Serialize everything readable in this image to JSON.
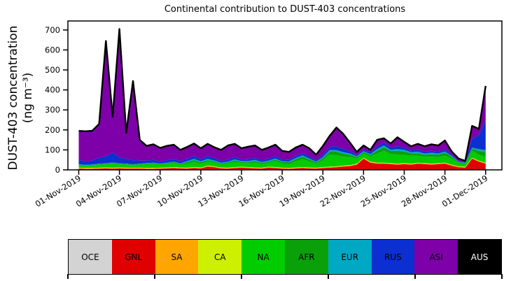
{
  "title": "Continental contribution to DUST-403 concentrations",
  "chart_data": {
    "type": "area",
    "stacked": true,
    "title": "Continental contribution to DUST-403 concentrations",
    "ylabel_line1": "DUST-403 concentration",
    "ylabel_line2": "(ng m⁻³)",
    "ylim": [
      0,
      745
    ],
    "yticks": [
      0,
      100,
      200,
      300,
      400,
      500,
      600,
      700
    ],
    "xlim_days": [
      -0.8,
      31.2
    ],
    "x_step_days": 0.5,
    "x_start": "01-Nov-2019",
    "x_end": "01-Dec-2019",
    "xticks": [
      {
        "day": 0,
        "label": "01-Nov-2019"
      },
      {
        "day": 3,
        "label": "04-Nov-2019"
      },
      {
        "day": 6,
        "label": "07-Nov-2019"
      },
      {
        "day": 9,
        "label": "10-Nov-2019"
      },
      {
        "day": 12,
        "label": "13-Nov-2019"
      },
      {
        "day": 15,
        "label": "16-Nov-2019"
      },
      {
        "day": 18,
        "label": "19-Nov-2019"
      },
      {
        "day": 21,
        "label": "22-Nov-2019"
      },
      {
        "day": 24,
        "label": "25-Nov-2019"
      },
      {
        "day": 27,
        "label": "28-Nov-2019"
      },
      {
        "day": 30,
        "label": "01-Dec-2019"
      }
    ],
    "grid": false,
    "legend_position": "bottom-strip",
    "outline_color": "#000000",
    "axis_color": "#000000",
    "background": "#ffffff",
    "series": [
      {
        "name": "OCE",
        "color": "#d3d3d3",
        "values": [
          1,
          1,
          1,
          1,
          1,
          1,
          1,
          1,
          1,
          1,
          1,
          1,
          1,
          1,
          1,
          1,
          1,
          1,
          1,
          1,
          1,
          1,
          1,
          1,
          1,
          1,
          1,
          1,
          1,
          1,
          1,
          1,
          1,
          1,
          1,
          1,
          1,
          1,
          1,
          1,
          1,
          1,
          1,
          1,
          1,
          1,
          1,
          1,
          1,
          1,
          1,
          1,
          1,
          1,
          1,
          1,
          1,
          1,
          1,
          1,
          1
        ]
      },
      {
        "name": "GNL",
        "color": "#e00000",
        "values": [
          5,
          4,
          4,
          5,
          6,
          5,
          6,
          5,
          5,
          5,
          4,
          4,
          5,
          6,
          8,
          6,
          5,
          8,
          6,
          15,
          12,
          6,
          5,
          8,
          10,
          8,
          6,
          5,
          10,
          8,
          5,
          4,
          6,
          8,
          6,
          5,
          8,
          10,
          12,
          15,
          18,
          25,
          55,
          35,
          30,
          30,
          28,
          25,
          28,
          25,
          30,
          28,
          25,
          28,
          30,
          20,
          12,
          10,
          55,
          40,
          30
        ]
      },
      {
        "name": "SA",
        "color": "#ffa500",
        "values": [
          3,
          3,
          3,
          3,
          3,
          3,
          3,
          3,
          3,
          3,
          3,
          3,
          3,
          3,
          3,
          3,
          3,
          3,
          3,
          3,
          3,
          3,
          3,
          3,
          3,
          3,
          3,
          3,
          3,
          3,
          3,
          3,
          3,
          3,
          3,
          3,
          3,
          3,
          3,
          3,
          3,
          3,
          3,
          3,
          3,
          3,
          3,
          3,
          3,
          3,
          3,
          3,
          3,
          3,
          3,
          3,
          3,
          3,
          3,
          3,
          3
        ]
      },
      {
        "name": "CA",
        "color": "#cdf000",
        "values": [
          2,
          2,
          2,
          2,
          2,
          2,
          2,
          2,
          2,
          2,
          2,
          2,
          2,
          2,
          2,
          2,
          2,
          2,
          2,
          2,
          2,
          2,
          2,
          2,
          2,
          2,
          2,
          2,
          2,
          2,
          2,
          2,
          2,
          2,
          2,
          2,
          2,
          2,
          2,
          2,
          2,
          2,
          2,
          2,
          2,
          2,
          2,
          2,
          2,
          2,
          2,
          2,
          2,
          2,
          2,
          2,
          2,
          2,
          2,
          2,
          2
        ]
      },
      {
        "name": "NA",
        "color": "#00cc00",
        "values": [
          12,
          10,
          12,
          15,
          15,
          20,
          15,
          15,
          12,
          15,
          18,
          20,
          15,
          18,
          20,
          15,
          20,
          25,
          18,
          20,
          18,
          15,
          20,
          25,
          18,
          20,
          25,
          18,
          20,
          30,
          20,
          18,
          30,
          40,
          30,
          20,
          35,
          60,
          55,
          45,
          40,
          25,
          20,
          25,
          45,
          60,
          45,
          45,
          40,
          40,
          35,
          32,
          35,
          30,
          35,
          30,
          15,
          12,
          35,
          30,
          28
        ]
      },
      {
        "name": "AFR",
        "color": "#0aa00a",
        "values": [
          3,
          3,
          3,
          3,
          4,
          4,
          4,
          3,
          3,
          3,
          4,
          4,
          4,
          4,
          5,
          4,
          8,
          10,
          8,
          8,
          6,
          5,
          6,
          8,
          6,
          6,
          8,
          6,
          6,
          8,
          8,
          10,
          12,
          12,
          10,
          6,
          10,
          15,
          18,
          15,
          12,
          8,
          8,
          8,
          15,
          18,
          15,
          20,
          18,
          12,
          12,
          10,
          12,
          12,
          15,
          10,
          5,
          5,
          10,
          20,
          25
        ]
      },
      {
        "name": "EUR",
        "color": "#00a8c4",
        "values": [
          2,
          2,
          2,
          2,
          2,
          2,
          2,
          2,
          2,
          2,
          2,
          2,
          2,
          2,
          2,
          2,
          5,
          6,
          5,
          6,
          5,
          4,
          4,
          5,
          4,
          4,
          5,
          4,
          4,
          5,
          4,
          4,
          5,
          6,
          5,
          4,
          5,
          8,
          8,
          8,
          6,
          4,
          4,
          5,
          8,
          8,
          6,
          8,
          8,
          6,
          8,
          6,
          8,
          6,
          6,
          4,
          3,
          3,
          5,
          8,
          10
        ]
      },
      {
        "name": "RUS",
        "color": "#0b2fd0",
        "values": [
          22,
          18,
          20,
          30,
          35,
          50,
          30,
          25,
          20,
          15,
          12,
          14,
          10,
          12,
          14,
          10,
          12,
          15,
          10,
          15,
          12,
          8,
          10,
          12,
          8,
          10,
          10,
          8,
          10,
          12,
          8,
          8,
          10,
          12,
          10,
          6,
          10,
          15,
          20,
          15,
          12,
          6,
          8,
          8,
          12,
          15,
          12,
          15,
          12,
          8,
          10,
          8,
          10,
          8,
          10,
          6,
          4,
          4,
          45,
          70,
          150
        ]
      },
      {
        "name": "ASI",
        "color": "#7d00a8",
        "values": [
          144.5,
          149.5,
          148.5,
          168.5,
          576.5,
          177.5,
          641.5,
          128.5,
          396.5,
          103.5,
          73.5,
          77.5,
          67.5,
          71.5,
          70.5,
          56.5,
          58.5,
          61.5,
          54.5,
          59.5,
          53.5,
          55.5,
          70.5,
          65.5,
          55.5,
          61.5,
          61.5,
          52.5,
          55.5,
          56.5,
          43.5,
          39.5,
          42.5,
          41.5,
          40.5,
          28.5,
          45.5,
          55.5,
          92.5,
          75.5,
          41.5,
          15.5,
          20.5,
          12.5,
          33.5,
          20.5,
          19.5,
          43.5,
          27.5,
          20.5,
          28.5,
          27.5,
          31.5,
          31.5,
          44.5,
          15.5,
          11.5,
          4.5,
          63.5,
          30.5,
          170.5
        ]
      },
      {
        "name": "AUS",
        "color": "#000000",
        "values": [
          0.5,
          0.5,
          0.5,
          0.5,
          0.5,
          0.5,
          0.5,
          0.5,
          0.5,
          0.5,
          0.5,
          0.5,
          0.5,
          0.5,
          0.5,
          0.5,
          0.5,
          0.5,
          0.5,
          0.5,
          0.5,
          0.5,
          0.5,
          0.5,
          0.5,
          0.5,
          0.5,
          0.5,
          0.5,
          0.5,
          0.5,
          0.5,
          0.5,
          0.5,
          0.5,
          0.5,
          0.5,
          0.5,
          0.5,
          0.5,
          0.5,
          0.5,
          0.5,
          0.5,
          0.5,
          0.5,
          0.5,
          0.5,
          0.5,
          0.5,
          0.5,
          0.5,
          0.5,
          0.5,
          0.5,
          0.5,
          0.5,
          0.5,
          0.5,
          0.5,
          0.5
        ]
      }
    ]
  },
  "legend": {
    "items": [
      {
        "label": "OCE",
        "color": "#d3d3d3",
        "text_color": "#000000"
      },
      {
        "label": "GNL",
        "color": "#e00000",
        "text_color": "#000000"
      },
      {
        "label": "SA",
        "color": "#ffa500",
        "text_color": "#000000"
      },
      {
        "label": "CA",
        "color": "#cdf000",
        "text_color": "#000000"
      },
      {
        "label": "NA",
        "color": "#00cc00",
        "text_color": "#000000"
      },
      {
        "label": "AFR",
        "color": "#0aa00a",
        "text_color": "#000000"
      },
      {
        "label": "EUR",
        "color": "#00a8c4",
        "text_color": "#000000"
      },
      {
        "label": "RUS",
        "color": "#0b2fd0",
        "text_color": "#000000"
      },
      {
        "label": "ASI",
        "color": "#7d00a8",
        "text_color": "#000000"
      },
      {
        "label": "AUS",
        "color": "#000000",
        "text_color": "#ffffff"
      }
    ]
  }
}
